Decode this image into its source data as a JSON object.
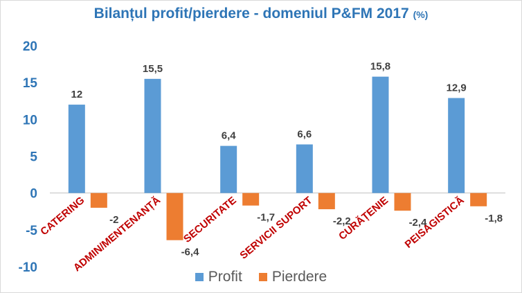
{
  "chart_data": {
    "type": "bar",
    "title": "Bilanțul profit/pierdere  - domeniul P&FM 2017",
    "title_unit": "(%)",
    "categories": [
      "CATERING",
      "ADMIN/MENTENANȚĂ",
      "SECURITATE",
      "SERVICII SUPORT",
      "CURĂȚENIE",
      "PEISAGISTICĂ"
    ],
    "series": [
      {
        "name": "Profit",
        "color": "#5b9bd5",
        "values": [
          12,
          15.5,
          6.4,
          6.6,
          15.8,
          12.9
        ],
        "labels": [
          "12",
          "15,5",
          "6,4",
          "6,6",
          "15,8",
          "12,9"
        ]
      },
      {
        "name": "Pierdere",
        "color": "#ed7d31",
        "values": [
          -2,
          -6.4,
          -1.7,
          -2.2,
          -2.4,
          -1.8
        ],
        "labels": [
          "-2",
          "-6,4",
          "-1,7",
          "-2,2",
          "-2,4",
          "-1,8"
        ]
      }
    ],
    "ylim": [
      -10,
      20
    ],
    "yticks": [
      "20",
      "15",
      "10",
      "5",
      "0",
      "-5",
      "-10"
    ],
    "grid": false,
    "legend_position": "bottom",
    "axis_label_color": "#2e75b6",
    "category_label_color": "#c00000"
  }
}
